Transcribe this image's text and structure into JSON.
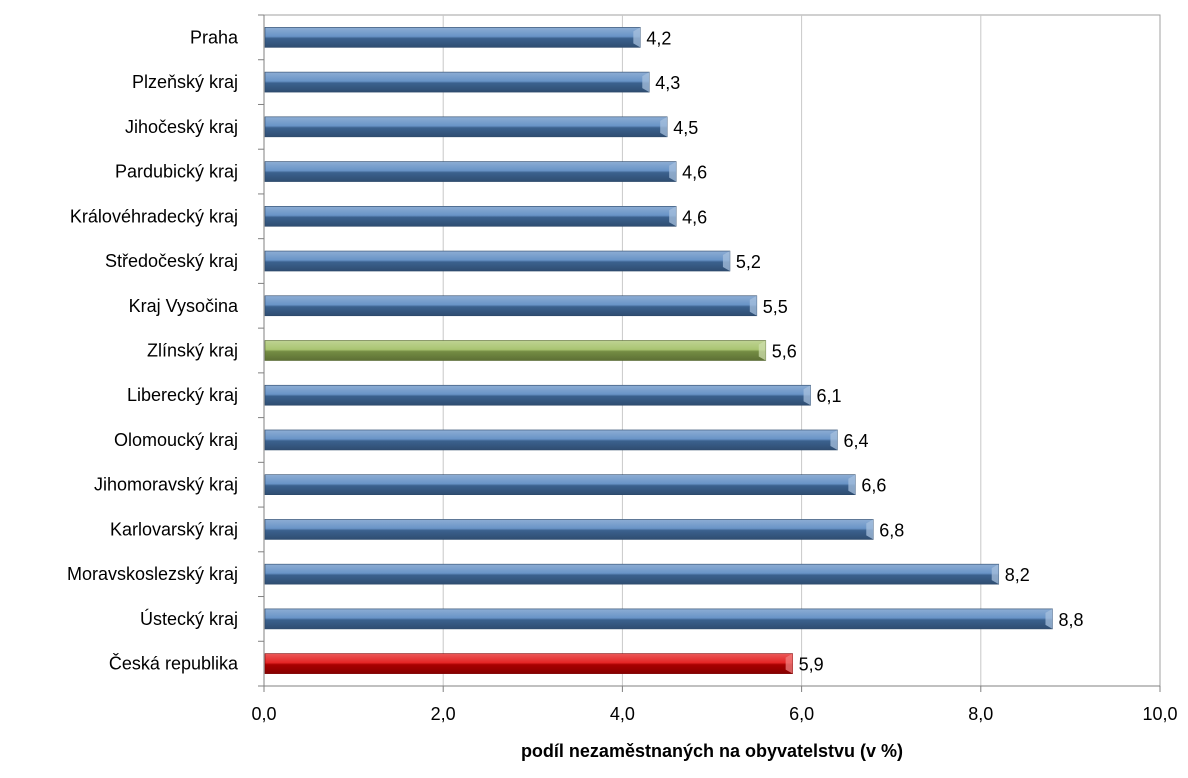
{
  "chart_data": {
    "type": "bar",
    "orientation": "horizontal",
    "categories": [
      "Praha",
      "Plzeňský kraj",
      "Jihočeský kraj",
      "Pardubický kraj",
      "Královéhradecký kraj",
      "Středočeský kraj",
      "Kraj Vysočina",
      "Zlínský kraj",
      "Liberecký kraj",
      "Olomoucký kraj",
      "Jihomoravský kraj",
      "Karlovarský kraj",
      "Moravskoslezský kraj",
      "Ústecký kraj",
      "Česká republika"
    ],
    "values": [
      4.2,
      4.3,
      4.5,
      4.6,
      4.6,
      5.2,
      5.5,
      5.6,
      6.1,
      6.4,
      6.6,
      6.8,
      8.2,
      8.8,
      5.9
    ],
    "value_labels": [
      "4,2",
      "4,3",
      "4,5",
      "4,6",
      "4,6",
      "5,2",
      "5,5",
      "5,6",
      "6,1",
      "6,4",
      "6,6",
      "6,8",
      "8,2",
      "8,8",
      "5,9"
    ],
    "bar_colors": [
      "#4f81bd",
      "#4f81bd",
      "#4f81bd",
      "#4f81bd",
      "#4f81bd",
      "#4f81bd",
      "#4f81bd",
      "#9bbb59",
      "#4f81bd",
      "#4f81bd",
      "#4f81bd",
      "#4f81bd",
      "#4f81bd",
      "#4f81bd",
      "#e00000"
    ],
    "xlabel": "podíl nezaměstnaných na obyvatelstvu (v %)",
    "ylabel": "",
    "xlim": [
      0,
      10
    ],
    "x_ticks": [
      0,
      2,
      4,
      6,
      8,
      10
    ],
    "x_tick_labels": [
      "0,0",
      "2,0",
      "4,0",
      "6,0",
      "8,0",
      "10,0"
    ],
    "grid": "vertical",
    "legend": "none"
  }
}
